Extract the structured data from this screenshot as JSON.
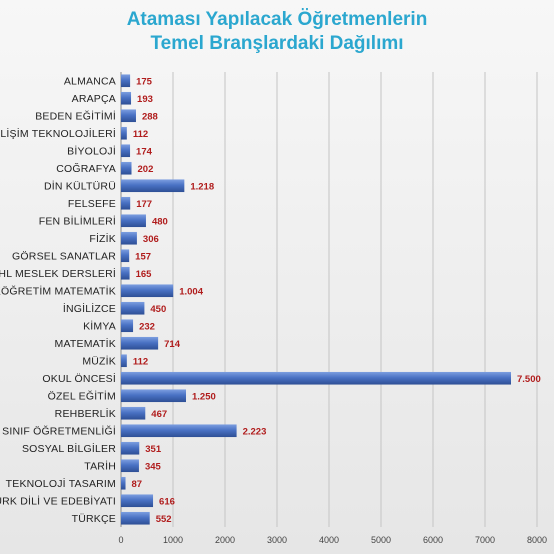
{
  "chart_data": {
    "type": "bar",
    "orientation": "horizontal",
    "title": "Ataması Yapılacak Öğretmenlerin Temel Branşlardaki Dağılımı",
    "title_lines": [
      "Ataması Yapılacak Öğretmenlerin",
      "Temel Branşlardaki Dağılımı"
    ],
    "categories": [
      "ALMANCA",
      "ARAPÇA",
      "BEDEN EĞİTİMİ",
      "BİLİŞİM TEKNOLOJİLERİ",
      "BİYOLOJİ",
      "COĞRAFYA",
      "DİN KÜLTÜRÜ",
      "FELSEFE",
      "FEN BİLİMLERİ",
      "FİZİK",
      "GÖRSEL SANATLAR",
      "İHL MESLEK DERSLERİ",
      "İLKÖĞRETİM MATEMATİK",
      "İNGİLİZCE",
      "KİMYA",
      "MATEMATİK",
      "MÜZİK",
      "OKUL ÖNCESİ",
      "ÖZEL EĞİTİM",
      "REHBERLİK",
      "SINIF ÖĞRETMENLİĞİ",
      "SOSYAL BİLGİLER",
      "TARİH",
      "TEKNOLOJİ TASARIM",
      "TÜRK DİLİ VE EDEBİYATI",
      "TÜRKÇE"
    ],
    "values": [
      175,
      193,
      288,
      112,
      174,
      202,
      1218,
      177,
      480,
      306,
      157,
      165,
      1004,
      450,
      232,
      714,
      112,
      7500,
      1250,
      467,
      2223,
      351,
      345,
      87,
      616,
      552
    ],
    "value_labels": [
      "175",
      "193",
      "288",
      "112",
      "174",
      "202",
      "1.218",
      "177",
      "480",
      "306",
      "157",
      "165",
      "1.004",
      "450",
      "232",
      "714",
      "112",
      "7.500",
      "1.250",
      "467",
      "2.223",
      "351",
      "345",
      "87",
      "616",
      "552"
    ],
    "x_ticks": [
      "0",
      "1000",
      "2000",
      "3000",
      "4000",
      "5000",
      "6000",
      "7000",
      "8000"
    ],
    "xlim": [
      0,
      8000
    ],
    "grid": true,
    "bar_color": "#4a72c4",
    "bar_color_dark": "#2e4f95",
    "value_label_color": "#b01c1c",
    "title_color": "#2ba7cf"
  }
}
